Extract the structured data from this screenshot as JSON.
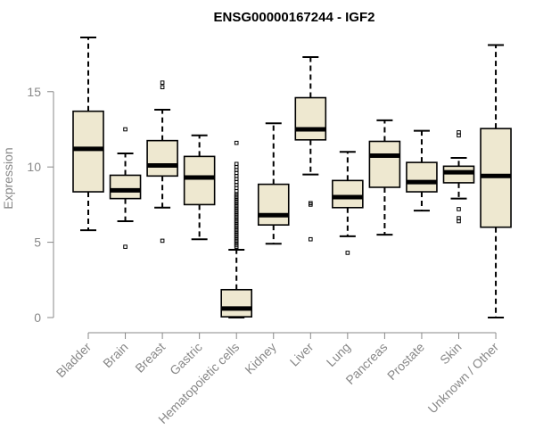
{
  "chart_data": {
    "type": "boxplot",
    "title": "ENSG00000167244 - IGF2",
    "xlabel": "",
    "ylabel": "Expression",
    "ylim": [
      0,
      18.6
    ],
    "yticks": [
      0,
      5,
      10,
      15
    ],
    "colors": {
      "box_fill": "#EEE8D0",
      "stroke": "#000000",
      "axis": "#888888"
    },
    "categories": [
      "Bladder",
      "Brain",
      "Breast",
      "Gastric",
      "Hematopoietic cells",
      "Kidney",
      "Liver",
      "Lung",
      "Pancreas",
      "Prostate",
      "Skin",
      "Unknown / Other"
    ],
    "boxes": [
      {
        "min": 5.8,
        "q1": 8.35,
        "median": 11.2,
        "q3": 13.7,
        "max": 18.6,
        "outliers": []
      },
      {
        "min": 6.4,
        "q1": 7.9,
        "median": 8.45,
        "q3": 9.45,
        "max": 10.9,
        "outliers": [
          12.5,
          4.7
        ]
      },
      {
        "min": 7.3,
        "q1": 9.4,
        "median": 10.1,
        "q3": 11.75,
        "max": 13.8,
        "outliers": [
          15.6,
          15.3,
          5.1
        ]
      },
      {
        "min": 5.2,
        "q1": 7.5,
        "median": 9.3,
        "q3": 10.7,
        "max": 12.1,
        "outliers": []
      },
      {
        "min": 0.0,
        "q1": 0.05,
        "median": 0.6,
        "q3": 1.85,
        "max": 4.5,
        "outliers": [
          4.7,
          4.8,
          4.9,
          5.0,
          5.1,
          5.2,
          5.3,
          5.4,
          5.5,
          5.6,
          5.7,
          5.8,
          5.9,
          6.0,
          6.1,
          6.2,
          6.3,
          6.4,
          6.5,
          6.6,
          6.7,
          6.8,
          6.9,
          7.0,
          7.1,
          7.2,
          7.3,
          7.4,
          7.5,
          7.6,
          7.7,
          7.8,
          7.9,
          8.0,
          8.1,
          8.2,
          8.4,
          8.6,
          8.8,
          9.0,
          9.2,
          9.4,
          9.6,
          9.8,
          10.0,
          10.2,
          11.6
        ]
      },
      {
        "min": 4.9,
        "q1": 6.15,
        "median": 6.8,
        "q3": 8.85,
        "max": 12.9,
        "outliers": []
      },
      {
        "min": 9.5,
        "q1": 11.8,
        "median": 12.5,
        "q3": 14.6,
        "max": 17.3,
        "outliers": [
          7.6,
          7.5,
          5.2
        ]
      },
      {
        "min": 5.4,
        "q1": 7.3,
        "median": 8.0,
        "q3": 9.1,
        "max": 11.0,
        "outliers": [
          4.3
        ]
      },
      {
        "min": 5.5,
        "q1": 8.65,
        "median": 10.75,
        "q3": 11.7,
        "max": 13.1,
        "outliers": []
      },
      {
        "min": 7.1,
        "q1": 8.35,
        "median": 9.0,
        "q3": 10.3,
        "max": 12.4,
        "outliers": []
      },
      {
        "min": 7.9,
        "q1": 8.95,
        "median": 9.65,
        "q3": 10.05,
        "max": 10.6,
        "outliers": [
          12.3,
          12.1,
          7.2,
          6.6,
          6.4
        ]
      },
      {
        "min": 0.0,
        "q1": 6.0,
        "median": 9.4,
        "q3": 12.55,
        "max": 18.1,
        "outliers": []
      }
    ]
  }
}
